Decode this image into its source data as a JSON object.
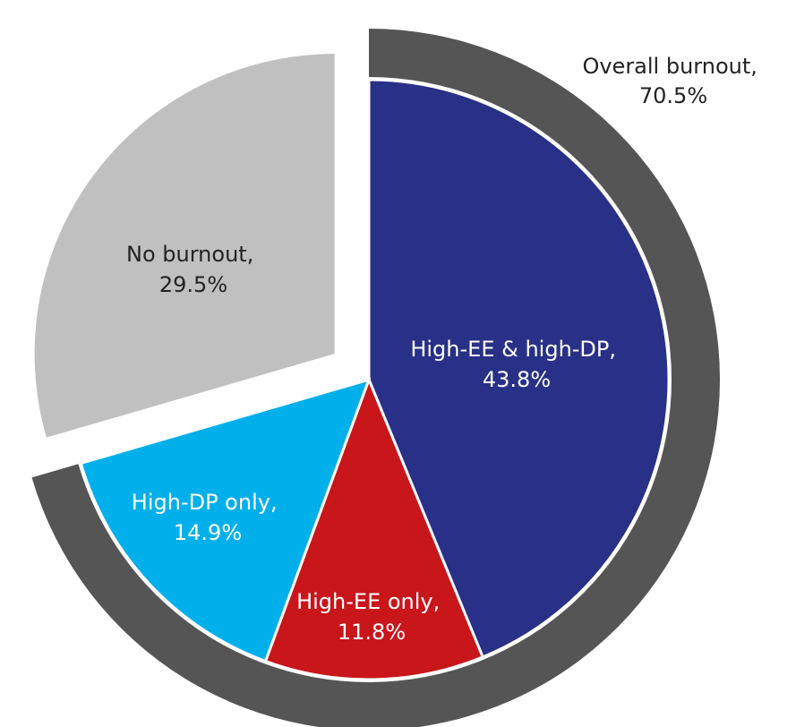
{
  "chart_data": {
    "type": "pie",
    "title": "",
    "slices": [
      {
        "key": "high_ee_dp",
        "line1": "High-EE & high-DP,",
        "line2": "43.8%",
        "value": 43.8,
        "color": "#283087",
        "text_color": "#ffffff"
      },
      {
        "key": "high_ee",
        "line1": "High-EE only,",
        "line2": "11.8%",
        "value": 11.8,
        "color": "#c8161b",
        "text_color": "#ffffff"
      },
      {
        "key": "high_dp",
        "line1": "High-DP only,",
        "line2": "14.9%",
        "value": 14.9,
        "color": "#01b0ea",
        "text_color": "#ffffff"
      },
      {
        "key": "no_burnout",
        "line1": "No burnout,",
        "line2": "29.5%",
        "value": 29.5,
        "color": "#c0c0c0",
        "text_color": "#222222",
        "exploded": true
      }
    ],
    "group": {
      "line1": "Overall burnout,",
      "line2": "70.5%",
      "value": 70.5,
      "ring_color": "#555555"
    }
  }
}
